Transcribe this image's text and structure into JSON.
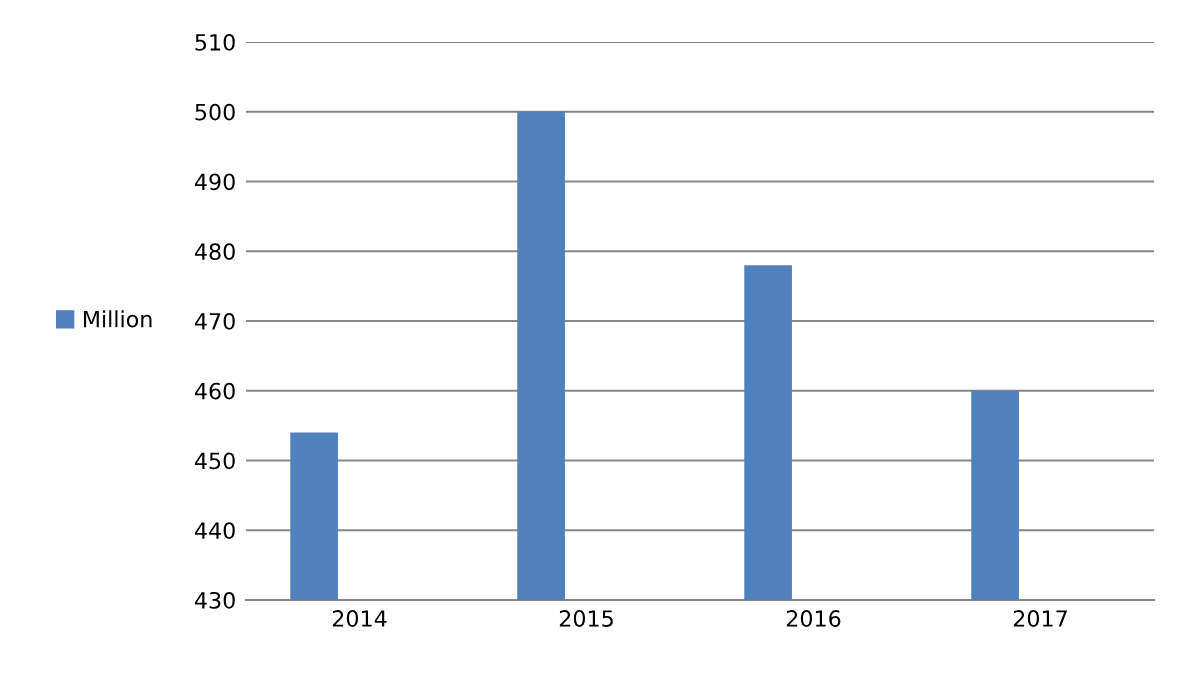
{
  "chart_data": {
    "type": "bar",
    "categories": [
      "2014",
      "2015",
      "2016",
      "2017"
    ],
    "series": [
      {
        "name": "Million",
        "color": "#4f81bd",
        "values": [
          454,
          500,
          478,
          460
        ]
      }
    ],
    "ylim": [
      430,
      510
    ],
    "yticks": [
      430,
      440,
      450,
      460,
      470,
      480,
      490,
      500,
      510
    ],
    "grid": "y",
    "legend": "left"
  }
}
